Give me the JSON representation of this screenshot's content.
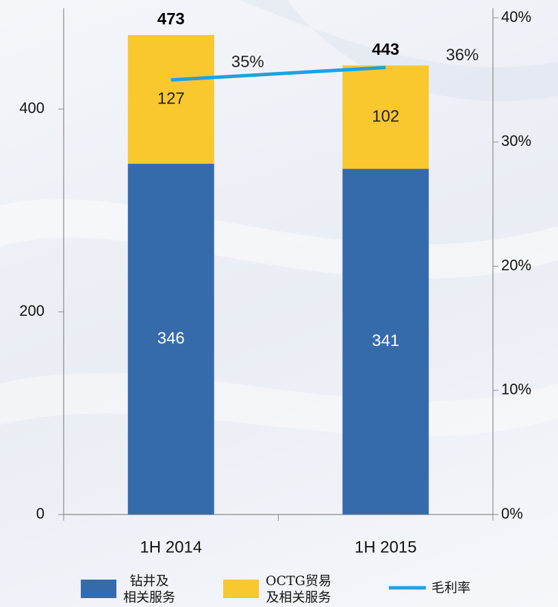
{
  "chart_data": {
    "type": "stacked_bar_line",
    "categories": [
      "1H 2014",
      "1H 2015"
    ],
    "series": [
      {
        "name": "钻井及\n相关服务",
        "color": "#366bab",
        "values": [
          346,
          341
        ],
        "label_color": "#ffffff"
      },
      {
        "name": "OCTG贸易\n及相关服务",
        "color": "#f9c72e",
        "values": [
          127,
          102
        ],
        "label_color": "#222222"
      },
      {
        "name": "毛利率",
        "color": "#1ea0e6",
        "type": "line",
        "axis": "y2",
        "values": [
          35,
          36
        ],
        "value_labels": [
          "35%",
          "36%"
        ]
      }
    ],
    "totals": [
      473,
      443
    ],
    "ylim": [
      0,
      490
    ],
    "yticks": [
      0,
      200,
      400
    ],
    "y2lim": [
      0,
      40
    ],
    "y2ticks": [
      {
        "value": 0,
        "label": "0%"
      },
      {
        "value": 10,
        "label": "10%"
      },
      {
        "value": 20,
        "label": "20%"
      },
      {
        "value": 30,
        "label": "30%"
      },
      {
        "value": 40,
        "label": "40%"
      }
    ],
    "grid": false,
    "legend": "bottom"
  }
}
